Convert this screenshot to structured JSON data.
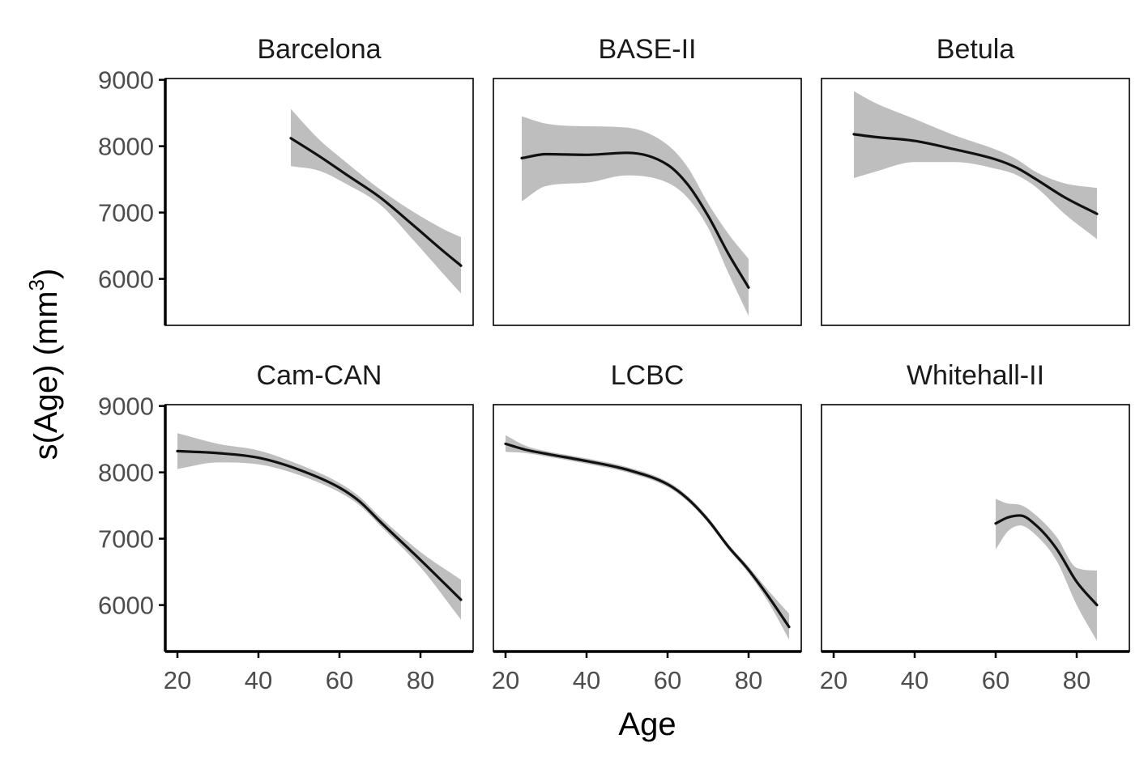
{
  "chart_data": {
    "type": "line",
    "xlabel": "Age",
    "ylabel": "s(Age) (mm",
    "ylabel_sup": "3",
    "ylabel_close": ")",
    "xlim": [
      17,
      93
    ],
    "ylim": [
      5300,
      9020
    ],
    "x_ticks": [
      20,
      40,
      60,
      80
    ],
    "y_ticks": [
      6000,
      7000,
      8000,
      9000
    ],
    "colors": {
      "line": "#111111",
      "ribbon": "#bebebe",
      "frame": "#000000",
      "background": "#ffffff"
    },
    "panels": [
      {
        "title": "Barcelona",
        "x": [
          48,
          55,
          62,
          70,
          78,
          86,
          90
        ],
        "y": [
          8120,
          7850,
          7560,
          7230,
          6820,
          6400,
          6200
        ],
        "lower": [
          7700,
          7630,
          7420,
          7120,
          6600,
          6050,
          5780
        ],
        "upper": [
          8560,
          8100,
          7740,
          7350,
          7020,
          6740,
          6630
        ]
      },
      {
        "title": "BASE-II",
        "x": [
          24,
          30,
          40,
          50,
          60,
          65,
          70,
          75,
          80
        ],
        "y": [
          7820,
          7880,
          7870,
          7900,
          7720,
          7420,
          6950,
          6380,
          5870
        ],
        "lower": [
          7170,
          7400,
          7450,
          7560,
          7450,
          7220,
          6770,
          6090,
          5440
        ],
        "upper": [
          8450,
          8340,
          8300,
          8280,
          8020,
          7680,
          7140,
          6680,
          6300
        ]
      },
      {
        "title": "Betula",
        "x": [
          25,
          30,
          40,
          50,
          60,
          65,
          70,
          77,
          85
        ],
        "y": [
          8180,
          8140,
          8080,
          7950,
          7800,
          7680,
          7500,
          7230,
          6980
        ],
        "lower": [
          7520,
          7610,
          7760,
          7760,
          7660,
          7570,
          7380,
          6980,
          6600
        ],
        "upper": [
          8830,
          8660,
          8410,
          8160,
          7950,
          7810,
          7610,
          7440,
          7370
        ]
      },
      {
        "title": "Cam-CAN",
        "x": [
          20,
          30,
          40,
          50,
          60,
          65,
          70,
          80,
          90
        ],
        "y": [
          8320,
          8290,
          8220,
          8040,
          7770,
          7560,
          7260,
          6680,
          6080
        ],
        "lower": [
          8050,
          8150,
          8120,
          7960,
          7700,
          7500,
          7200,
          6570,
          5780
        ],
        "upper": [
          8590,
          8430,
          8330,
          8120,
          7840,
          7630,
          7330,
          6800,
          6380
        ]
      },
      {
        "title": "LCBC",
        "x": [
          20,
          25,
          30,
          40,
          50,
          60,
          65,
          70,
          75,
          80,
          85,
          90
        ],
        "y": [
          8430,
          8340,
          8280,
          8170,
          8040,
          7820,
          7600,
          7280,
          6880,
          6530,
          6120,
          5670
        ],
        "lower": [
          8310,
          8290,
          8240,
          8130,
          8000,
          7780,
          7560,
          7240,
          6840,
          6480,
          6030,
          5480
        ],
        "upper": [
          8560,
          8400,
          8320,
          8210,
          8080,
          7860,
          7640,
          7320,
          6920,
          6580,
          6210,
          5870
        ]
      },
      {
        "title": "Whitehall-II",
        "x": [
          60,
          63,
          66,
          70,
          75,
          80,
          85
        ],
        "y": [
          7230,
          7320,
          7350,
          7200,
          6850,
          6350,
          6000
        ],
        "lower": [
          6840,
          7110,
          7200,
          7050,
          6670,
          6000,
          5460
        ],
        "upper": [
          7600,
          7530,
          7510,
          7350,
          7030,
          6560,
          6520
        ]
      }
    ]
  }
}
